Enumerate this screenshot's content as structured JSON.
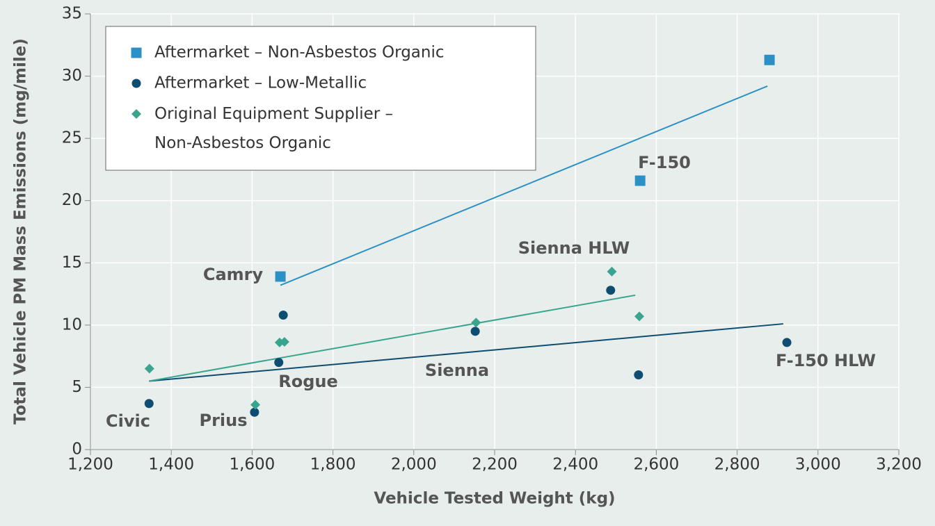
{
  "chart_data": {
    "type": "scatter",
    "xlabel": "Vehicle Tested Weight (kg)",
    "ylabel": "Total Vehicle PM Mass Emissions  (mg/mile)",
    "xlim": [
      1200,
      3200
    ],
    "xticks": [
      {
        "value": 1200,
        "label": "1,200"
      },
      {
        "value": 1400,
        "label": "1,400"
      },
      {
        "value": 1600,
        "label": "1,600"
      },
      {
        "value": 1800,
        "label": "1,800"
      },
      {
        "value": 2000,
        "label": "2,000"
      },
      {
        "value": 2200,
        "label": "2,200"
      },
      {
        "value": 2400,
        "label": "2,400"
      },
      {
        "value": 2600,
        "label": "2,600"
      },
      {
        "value": 2800,
        "label": "2,800"
      },
      {
        "value": 3000,
        "label": "3,000"
      },
      {
        "value": 3200,
        "label": "3,200"
      }
    ],
    "ylim": [
      0,
      35
    ],
    "yticks": [
      0,
      5,
      10,
      15,
      20,
      25,
      30,
      35
    ],
    "grid": true,
    "legend": "upper left",
    "series": [
      {
        "name": "Aftermarket – Non-Asbestos Organic",
        "color": "#2b90c6",
        "marker": "square",
        "x": [
          1670,
          2560,
          2880
        ],
        "values": [
          13.9,
          21.6,
          31.3
        ],
        "trendline": {
          "x": [
            1670,
            2875
          ],
          "values": [
            13.2,
            29.2
          ]
        }
      },
      {
        "name": "Aftermarket – Low-Metallic",
        "color": "#0f4c72",
        "marker": "circle",
        "x": [
          1345,
          1606,
          1666,
          1677,
          2152,
          2487,
          2556,
          2923
        ],
        "values": [
          3.7,
          3.0,
          7.0,
          10.8,
          9.5,
          12.8,
          6.0,
          8.6
        ],
        "trendline": {
          "x": [
            1345,
            2914
          ],
          "values": [
            5.5,
            10.1
          ]
        }
      },
      {
        "name": "Original Equipment Supplier – Non-Asbestos Organic",
        "color": "#3aa58f",
        "marker": "diamond",
        "x": [
          1346,
          1608,
          1668,
          1680,
          2154,
          2490,
          2558
        ],
        "values": [
          6.5,
          3.6,
          8.6,
          8.65,
          10.2,
          14.3,
          10.7
        ],
        "trendline": {
          "x": [
            1345,
            2548
          ],
          "values": [
            5.5,
            12.4
          ]
        }
      }
    ],
    "annotations": [
      "Camry",
      "F-150",
      "Sienna HLW",
      "Rogue",
      "Sienna",
      "Civic",
      "Prius",
      "F-150 HLW"
    ]
  }
}
